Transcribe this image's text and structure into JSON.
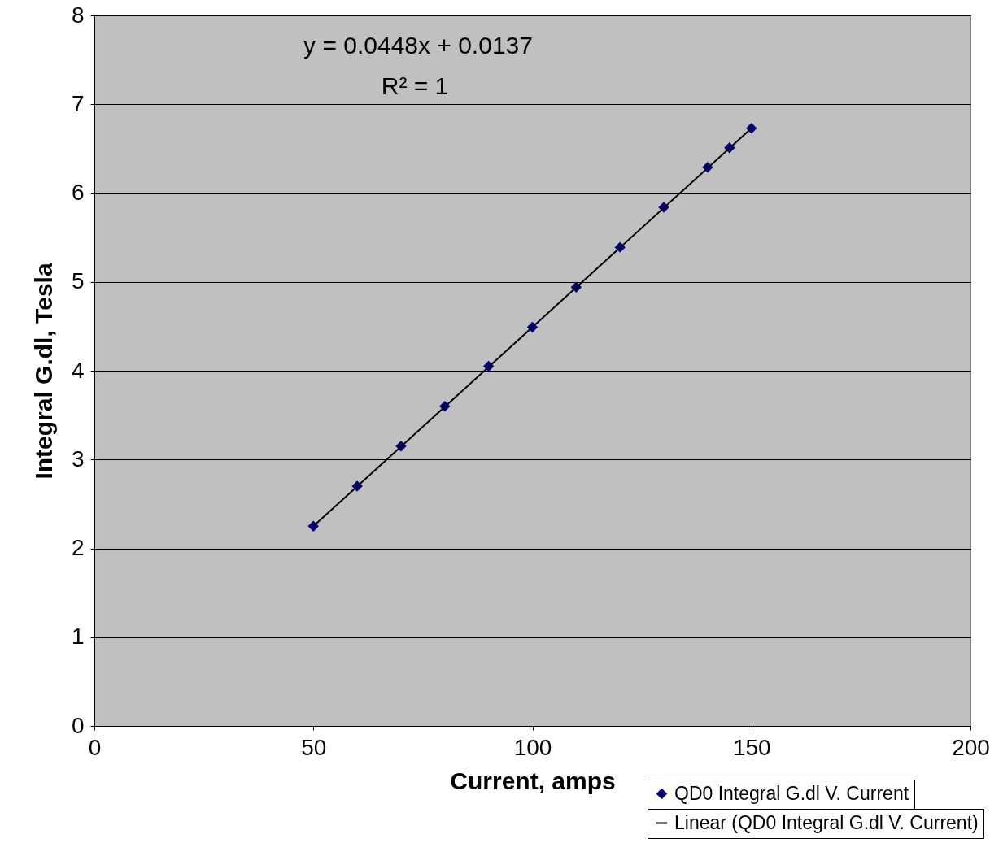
{
  "chart_data": {
    "type": "scatter",
    "xlabel": "Current, amps",
    "ylabel": "Integral G.dl, Tesla",
    "xlim": [
      0,
      200
    ],
    "xticks": [
      0,
      50,
      100,
      150,
      200
    ],
    "ylim": [
      0,
      8
    ],
    "yticks": [
      0,
      1,
      2,
      3,
      4,
      5,
      6,
      7,
      8
    ],
    "grid": "y",
    "legend": "bottom right",
    "marker": "diamond",
    "annotations": [
      "y = 0.0448x + 0.0137",
      "R² = 1"
    ],
    "series": [
      {
        "name": "QD0 Integral G.dl V. Current",
        "color": "#000080",
        "x": [
          50,
          60,
          70,
          80,
          90,
          100,
          110,
          120,
          130,
          140,
          145,
          150
        ],
        "values": [
          2.25,
          2.7,
          3.15,
          3.6,
          4.05,
          4.49,
          4.94,
          5.39,
          5.84,
          6.29,
          6.51,
          6.73
        ]
      },
      {
        "name": "Linear (QD0 Integral G.dl V. Current)",
        "type": "line",
        "marker": "none",
        "line_style": "solid",
        "color": "#000000",
        "x": [
          50,
          150
        ],
        "values": [
          2.25,
          6.73
        ]
      }
    ]
  }
}
